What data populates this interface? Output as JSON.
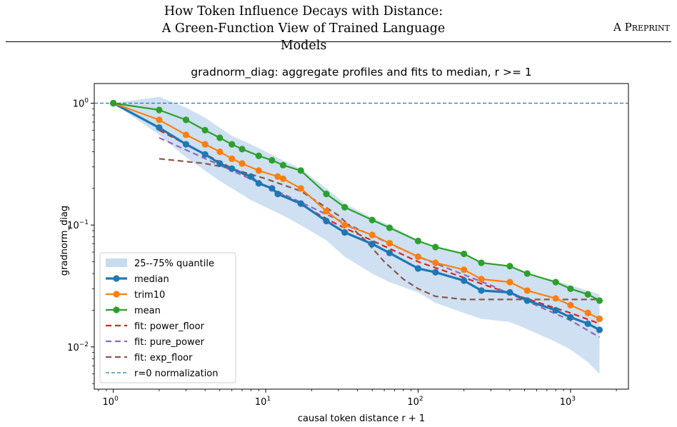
{
  "header": {
    "title_line1": "How Token Influence Decays with Distance:",
    "title_line2": "A Green-Function View of Trained Language Models",
    "tag": "A Preprint"
  },
  "chart_data": {
    "type": "line",
    "title": "gradnorm_diag: aggregate profiles and fits to median, r >= 1",
    "xlabel": "causal token distance r + 1",
    "ylabel": "gradnorm_diag",
    "xscale": "log",
    "yscale": "log",
    "xlim": [
      0.75,
      2400
    ],
    "ylim": [
      0.0045,
      1.45
    ],
    "xticks": [
      {
        "value": 1,
        "label": "10^0"
      },
      {
        "value": 10,
        "label": "10^1"
      },
      {
        "value": 100,
        "label": "10^2"
      },
      {
        "value": 1000,
        "label": "10^3"
      }
    ],
    "yticks": [
      {
        "value": 0.01,
        "label": "10^-2"
      },
      {
        "value": 0.1,
        "label": "10^-1"
      },
      {
        "value": 1,
        "label": "10^0"
      }
    ],
    "legend_position": "lower-left",
    "band": {
      "name": "25--75% quantile",
      "color": "#c6dbef",
      "x": [
        1,
        2,
        3,
        4,
        5,
        6,
        8,
        10,
        13,
        17,
        25,
        33,
        50,
        65,
        100,
        130,
        200,
        260,
        400,
        520,
        800,
        1000,
        1300,
        1550
      ],
      "upper": [
        1,
        1.13,
        0.92,
        0.76,
        0.63,
        0.54,
        0.46,
        0.4,
        0.34,
        0.29,
        0.2,
        0.15,
        0.115,
        0.1,
        0.075,
        0.066,
        0.058,
        0.05,
        0.046,
        0.04,
        0.035,
        0.032,
        0.029,
        0.027
      ],
      "lower": [
        1,
        0.55,
        0.36,
        0.28,
        0.23,
        0.2,
        0.16,
        0.14,
        0.12,
        0.1,
        0.075,
        0.055,
        0.04,
        0.034,
        0.028,
        0.023,
        0.019,
        0.017,
        0.016,
        0.014,
        0.011,
        0.0095,
        0.0075,
        0.006
      ]
    },
    "series": [
      {
        "name": "median",
        "color": "#1f77b4",
        "width": 3.2,
        "markers": true,
        "x": [
          1,
          2,
          3,
          4,
          5,
          6,
          8,
          9,
          11,
          12,
          17,
          25,
          33,
          50,
          65,
          100,
          130,
          200,
          260,
          400,
          520,
          800,
          1000,
          1300,
          1550
        ],
        "y": [
          1,
          0.63,
          0.46,
          0.38,
          0.32,
          0.29,
          0.25,
          0.22,
          0.2,
          0.18,
          0.15,
          0.108,
          0.087,
          0.07,
          0.059,
          0.044,
          0.041,
          0.035,
          0.029,
          0.028,
          0.024,
          0.02,
          0.0175,
          0.0155,
          0.0138
        ]
      },
      {
        "name": "trim10",
        "color": "#ff7f0e",
        "width": 2.2,
        "markers": true,
        "x": [
          1,
          2,
          3,
          4,
          5,
          6,
          7,
          9,
          12,
          13,
          17,
          25,
          33,
          50,
          65,
          100,
          130,
          200,
          260,
          400,
          520,
          800,
          1000,
          1300,
          1550
        ],
        "y": [
          1,
          0.73,
          0.55,
          0.46,
          0.4,
          0.35,
          0.32,
          0.28,
          0.25,
          0.24,
          0.2,
          0.13,
          0.1,
          0.083,
          0.071,
          0.055,
          0.049,
          0.043,
          0.036,
          0.034,
          0.029,
          0.025,
          0.022,
          0.019,
          0.017
        ]
      },
      {
        "name": "mean",
        "color": "#2ca02c",
        "width": 2.2,
        "markers": true,
        "x": [
          1,
          2,
          3,
          4,
          5,
          6,
          7,
          9,
          11,
          13,
          17,
          25,
          33,
          50,
          65,
          100,
          130,
          200,
          260,
          400,
          520,
          800,
          1000,
          1300,
          1550
        ],
        "y": [
          1,
          0.88,
          0.73,
          0.6,
          0.52,
          0.46,
          0.42,
          0.37,
          0.34,
          0.31,
          0.28,
          0.18,
          0.14,
          0.11,
          0.095,
          0.074,
          0.066,
          0.058,
          0.049,
          0.046,
          0.04,
          0.034,
          0.03,
          0.027,
          0.024
        ]
      },
      {
        "name": "fit: power_floor",
        "color": "#d62728",
        "width": 2.2,
        "dash": "8,5",
        "x": [
          2,
          5,
          10,
          30,
          100,
          300,
          1000,
          1550
        ],
        "y": [
          0.6,
          0.33,
          0.21,
          0.1,
          0.05,
          0.031,
          0.019,
          0.0155
        ]
      },
      {
        "name": "fit: pure_power",
        "color": "#9467bd",
        "width": 2.2,
        "dash": "8,5",
        "x": [
          2,
          5,
          10,
          30,
          100,
          300,
          1000,
          1550
        ],
        "y": [
          0.52,
          0.31,
          0.21,
          0.11,
          0.055,
          0.032,
          0.0165,
          0.012
        ]
      },
      {
        "name": "fit: exp_floor",
        "color": "#8c564b",
        "width": 2.2,
        "dash": "8,5",
        "x": [
          2,
          4,
          6,
          10,
          17,
          30,
          45,
          60,
          80,
          100,
          130,
          200,
          400,
          1000,
          1550
        ],
        "y": [
          0.35,
          0.32,
          0.29,
          0.24,
          0.19,
          0.12,
          0.075,
          0.05,
          0.036,
          0.03,
          0.026,
          0.0245,
          0.0245,
          0.0245,
          0.0245
        ]
      },
      {
        "name": "r=0 normalization",
        "color": "#1f77b4",
        "width": 1.2,
        "dash": "5,3",
        "hline": 1
      }
    ]
  }
}
